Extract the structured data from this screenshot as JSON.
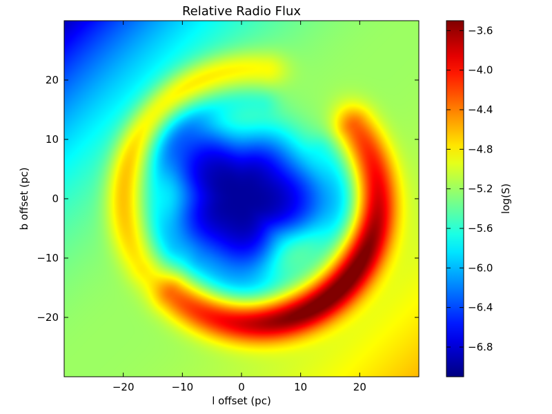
{
  "chart_data": {
    "type": "heatmap",
    "title": "Relative Radio Flux",
    "xlabel": "l offset (pc)",
    "ylabel": "b offset (pc)",
    "xlim": [
      -30,
      30
    ],
    "ylim": [
      -30,
      30
    ],
    "x_ticks": [
      -20,
      -10,
      0,
      10,
      20
    ],
    "y_ticks": [
      -20,
      -10,
      0,
      10,
      20
    ],
    "colorbar": {
      "label": "log(S)",
      "range": [
        -7.1,
        -3.5
      ],
      "ticks": [
        -3.6,
        -4.0,
        -4.4,
        -4.8,
        -5.2,
        -5.6,
        -6.0,
        -6.4,
        -6.8
      ],
      "tick_labels": [
        "−3.6",
        "−4.0",
        "−4.4",
        "−4.8",
        "−5.2",
        "−5.6",
        "−6.0",
        "−6.4",
        "−6.8"
      ],
      "colormap": "jet"
    },
    "grid": false,
    "structure": {
      "background_level": -5.2,
      "center": [
        2,
        0
      ],
      "core": {
        "center": [
          0,
          0
        ],
        "peak_level": -7.0,
        "radius_l": 13,
        "radius_b": 12
      },
      "arcs": [
        {
          "name": "",
          "radius": 22,
          "width": 3.0,
          "angle_range_deg": [
            85,
            210
          ],
          "peak_level": -4.4
        },
        {
          "name": "",
          "radius": 21,
          "width": 3.4,
          "angle_range_deg": [
            230,
            395
          ],
          "peak_level": -3.6
        }
      ],
      "corner_gradient": {
        "top_left": -6.9,
        "bottom_right": -4.6
      }
    }
  }
}
